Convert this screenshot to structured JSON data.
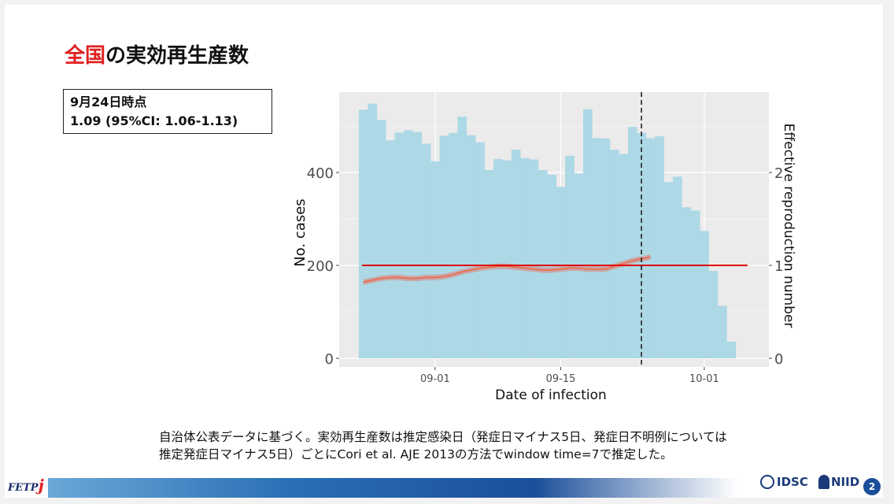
{
  "slide": {
    "title_accent": "全国",
    "title_rest": "の実効再生産数",
    "info_line1": "9月24日時点",
    "info_line2": "1.09 (95%CI: 1.06-1.13)",
    "note_line1": "自治体公表データに基づく。実効再生産数は推定感染日（発症日マイナス5日、発症日不明例については",
    "note_line2": "推定発症日マイナス5日）ごとにCori et al. AJE 2013の方法でwindow time=7で推定した。",
    "footer_fetp": "FETP",
    "footer_fetp_j": "j",
    "footer_idsc": "IDSC",
    "footer_niid": "NIID",
    "page_number": "2"
  },
  "colors": {
    "accent": "#e02020",
    "bars": "#add8e6",
    "panel": "#ebebeb",
    "rt_line": "#e8705a",
    "threshold": "#e00000"
  },
  "chart_data": {
    "type": "bar",
    "xlabel": "Date of infection",
    "ylabel": "No. cases",
    "y2label": "Effective reproduction number",
    "x_start": "2020-08-24",
    "x_ticks": [
      "09-01",
      "09-15",
      "10-01"
    ],
    "y_ticks": [
      "0",
      "200",
      "400"
    ],
    "y2_ticks": [
      "0",
      "1",
      "2"
    ],
    "ylim": [
      0,
      560
    ],
    "y2lim": [
      0,
      2.8
    ],
    "grid": true,
    "values": [
      535,
      548,
      513,
      469,
      486,
      491,
      487,
      462,
      424,
      479,
      485,
      520,
      480,
      465,
      405,
      429,
      426,
      449,
      431,
      428,
      405,
      395,
      369,
      436,
      398,
      536,
      474,
      473,
      449,
      440,
      498,
      485,
      474,
      478,
      379,
      391,
      325,
      318,
      274,
      188,
      113,
      36
    ],
    "rt": [
      0.82,
      0.84,
      0.86,
      0.87,
      0.87,
      0.86,
      0.86,
      0.87,
      0.87,
      0.88,
      0.9,
      0.93,
      0.95,
      0.97,
      0.98,
      0.99,
      0.99,
      0.98,
      0.97,
      0.96,
      0.95,
      0.95,
      0.96,
      0.97,
      0.97,
      0.96,
      0.96,
      0.96,
      0.99,
      1.02,
      1.05,
      1.07,
      1.09
    ],
    "rt_threshold": 1,
    "vline_index": 31.5
  }
}
